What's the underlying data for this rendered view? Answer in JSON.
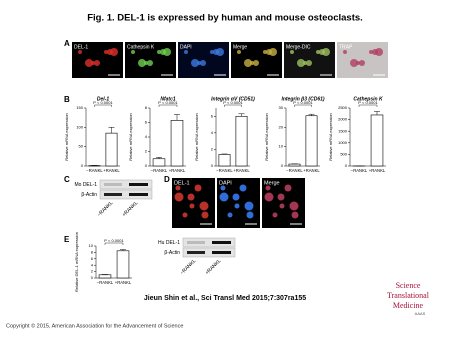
{
  "title": "Fig. 1. DEL-1 is expressed by human and mouse osteoclasts.",
  "panels": {
    "A": {
      "label": "A",
      "images": [
        "DEL-1",
        "Cathepsin K",
        "DAPI",
        "Merge",
        "Merge-DIC",
        "TRAP"
      ]
    },
    "B": {
      "label": "B"
    },
    "C": {
      "label": "C",
      "blot": [
        "Mo DEL-1",
        "β-Actin"
      ],
      "lanes": [
        "−RANKL",
        "+RANKL"
      ]
    },
    "D": {
      "label": "D",
      "images": [
        "DEL-1",
        "DAPI",
        "Merge"
      ]
    },
    "E": {
      "label": "E",
      "blot": [
        "Hu DEL-1",
        "β-Actin"
      ],
      "lanes": [
        "−RANKL",
        "+RANKL"
      ]
    }
  },
  "chart_data": [
    {
      "type": "bar",
      "title": "Del-1",
      "ylabel": "Relative mRNA expression",
      "categories": [
        "−RANKL",
        "+RANKL"
      ],
      "values": [
        1,
        85
      ],
      "errors": [
        0.5,
        15
      ],
      "color": "#ffffff",
      "ylim": [
        0,
        150
      ],
      "yticks": [
        0,
        50,
        100,
        150
      ],
      "annotation": "P < 0.0001"
    },
    {
      "type": "bar",
      "title": "Nfatc1",
      "ylabel": "Relative mRNA expression",
      "categories": [
        "−RANKL",
        "+RANKL"
      ],
      "values": [
        1,
        6.3
      ],
      "errors": [
        0.2,
        0.8
      ],
      "color": "#ffffff",
      "ylim": [
        0,
        8
      ],
      "yticks": [
        0,
        2,
        4,
        6,
        8
      ],
      "annotation": "P < 0.0001"
    },
    {
      "type": "bar",
      "title": "Integrin αV (CD51)",
      "ylabel": "Relative mRNA expression",
      "categories": [
        "−RANKL",
        "+RANKL"
      ],
      "values": [
        1.4,
        6
      ],
      "errors": [
        0.05,
        0.3
      ],
      "color": "#ffffff",
      "ylim": [
        0,
        7
      ],
      "yticks": [
        0,
        2,
        4,
        6
      ],
      "annotation": "P < 0.0001"
    },
    {
      "type": "bar",
      "title": "Integrin β3 (CD61)",
      "ylabel": "Relative mRNA expression",
      "categories": [
        "−RANKL",
        "+RANKL"
      ],
      "values": [
        1,
        26
      ],
      "errors": [
        0.1,
        0.8
      ],
      "color": "#ffffff",
      "ylim": [
        0,
        30
      ],
      "yticks": [
        0,
        10,
        20,
        30
      ],
      "annotation": "P < 0.0001"
    },
    {
      "type": "bar",
      "title": "Cathepsin K",
      "ylabel": "Relative mRNA expression",
      "categories": [
        "−RANKL",
        "+RANKL"
      ],
      "values": [
        1,
        2200
      ],
      "errors": [
        0,
        150
      ],
      "color": "#ffffff",
      "ylim": [
        0,
        2500
      ],
      "yticks": [
        0,
        500,
        1000,
        1500,
        2000,
        2500
      ],
      "annotation": "P < 0.0001"
    },
    {
      "type": "bar",
      "ylabel": "Relative DEL-1 mRNA expression",
      "categories": [
        "−RANKL",
        "+RANKL"
      ],
      "values": [
        1,
        8.5
      ],
      "errors": [
        0.1,
        0.4
      ],
      "color": "#ffffff",
      "ylim": [
        0,
        10
      ],
      "yticks": [
        0,
        2,
        4,
        6,
        8,
        10
      ],
      "annotation": "P < 0.0001"
    }
  ],
  "citation": "Jieun Shin et al., Sci Transl Med 2015;7:307ra155",
  "copyright": "Copyright © 2015, American Association for the Advancement of Science",
  "logo": {
    "lines": [
      "Science",
      "Translational",
      "Medicine"
    ],
    "org": "AAAS"
  }
}
